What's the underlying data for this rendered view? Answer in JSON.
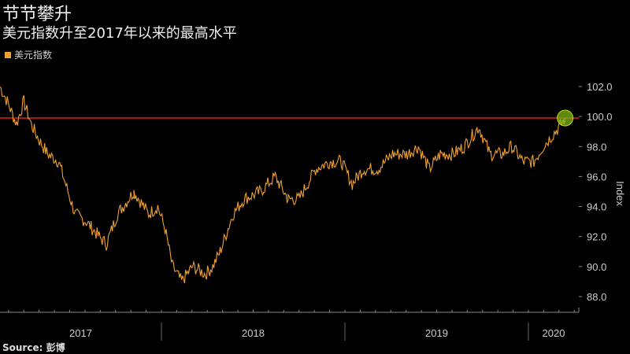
{
  "title": "节节攀升",
  "subtitle": "美元指数升至2017年以来的最高水平",
  "source": "Source: 彭博",
  "chart_data": {
    "type": "line",
    "title": "节节攀升",
    "ylabel": "Index",
    "xlabel": "",
    "ylim": [
      87,
      103
    ],
    "yticks": [
      "88.0",
      "90.0",
      "92.0",
      "94.0",
      "96.0",
      "98.0",
      "100.0",
      "102.0"
    ],
    "ytick_values": [
      88,
      90,
      92,
      94,
      96,
      98,
      100,
      102
    ],
    "xtick_labels": [
      "2017",
      "2018",
      "2019",
      "2020"
    ],
    "xlim": [
      2017.12,
      2020.2
    ],
    "legend": [
      {
        "label": "美元指数",
        "color": "#f0a030"
      }
    ],
    "reference_line": {
      "value": 99.9,
      "color": "#e02020"
    },
    "highlight": {
      "x": 2020.2,
      "y": 99.9,
      "color": "#7cb518"
    },
    "series": [
      {
        "name": "美元指数",
        "color": "#f0a030",
        "x": [
          2017.12,
          2017.16,
          2017.21,
          2017.25,
          2017.29,
          2017.33,
          2017.38,
          2017.44,
          2017.49,
          2017.53,
          2017.59,
          2017.66,
          2017.7,
          2017.76,
          2017.85,
          2017.85,
          2017.93,
          2017.98,
          2018.02,
          2018.06,
          2018.11,
          2018.17,
          2018.24,
          2018.28,
          2018.32,
          2018.39,
          2018.45,
          2018.54,
          2018.62,
          2018.69,
          2018.69,
          2018.75,
          2018.84,
          2018.92,
          2018.98,
          2019.04,
          2019.1,
          2019.18,
          2019.26,
          2019.34,
          2019.4,
          2019.46,
          2019.52,
          2019.59,
          2019.65,
          2019.71,
          2019.73,
          2019.79,
          2019.86,
          2019.91,
          2019.97,
          2020.03,
          2020.08,
          2020.18,
          2020.2
        ],
        "y": [
          102.0,
          101.0,
          99.5,
          101.0,
          99.5,
          98.5,
          97.5,
          97.0,
          95.0,
          93.5,
          93.0,
          92.0,
          91.5,
          93.5,
          95.0,
          95.0,
          93.5,
          94.0,
          92.5,
          90.0,
          89.0,
          90.0,
          89.5,
          90.0,
          91.0,
          93.5,
          94.5,
          95.0,
          96.0,
          94.5,
          94.5,
          94.5,
          96.5,
          97.0,
          97.0,
          95.5,
          96.5,
          96.5,
          97.5,
          97.5,
          98.0,
          96.5,
          97.5,
          97.5,
          98.0,
          99.0,
          99.3,
          97.5,
          97.5,
          98.0,
          97.0,
          97.0,
          98.0,
          99.5,
          99.9
        ]
      }
    ]
  }
}
